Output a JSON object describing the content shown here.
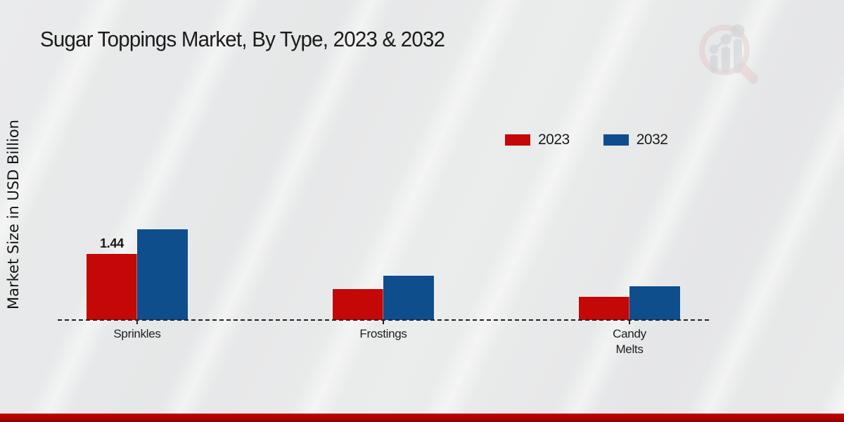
{
  "header": {
    "title": "Sugar Toppings Market, By Type, 2023 & 2032"
  },
  "watermark": {
    "icon": "mrfr-magnifier-bar-chart-logo",
    "ring_color": "#dba8a8",
    "bars_color": "#c2c6cc"
  },
  "chart_data": {
    "type": "bar",
    "title": "Sugar Toppings Market, By Type, 2023 & 2032",
    "xlabel": "",
    "ylabel": "Market Size in USD Billion",
    "categories": [
      "Sprinkles",
      "Frostings",
      "Candy Melts"
    ],
    "tick_label_lines": [
      [
        "Sprinkles"
      ],
      [
        "Frostings"
      ],
      [
        "Candy",
        "Melts"
      ]
    ],
    "series": [
      {
        "name": "2023",
        "color": "#c40707",
        "values": [
          1.44,
          0.67,
          0.51
        ]
      },
      {
        "name": "2032",
        "color": "#0f4e8d",
        "values": [
          1.98,
          0.97,
          0.74
        ]
      }
    ],
    "data_labels": [
      {
        "category": "Sprinkles",
        "series": "2023",
        "text": "1.44"
      }
    ],
    "legend": {
      "position": "top-right",
      "entries": [
        "2023",
        "2032"
      ]
    },
    "ylim": [
      0,
      2.2
    ],
    "grid": false,
    "baseline_style": "dashed"
  },
  "footer": {
    "band_color": "#b00000"
  }
}
